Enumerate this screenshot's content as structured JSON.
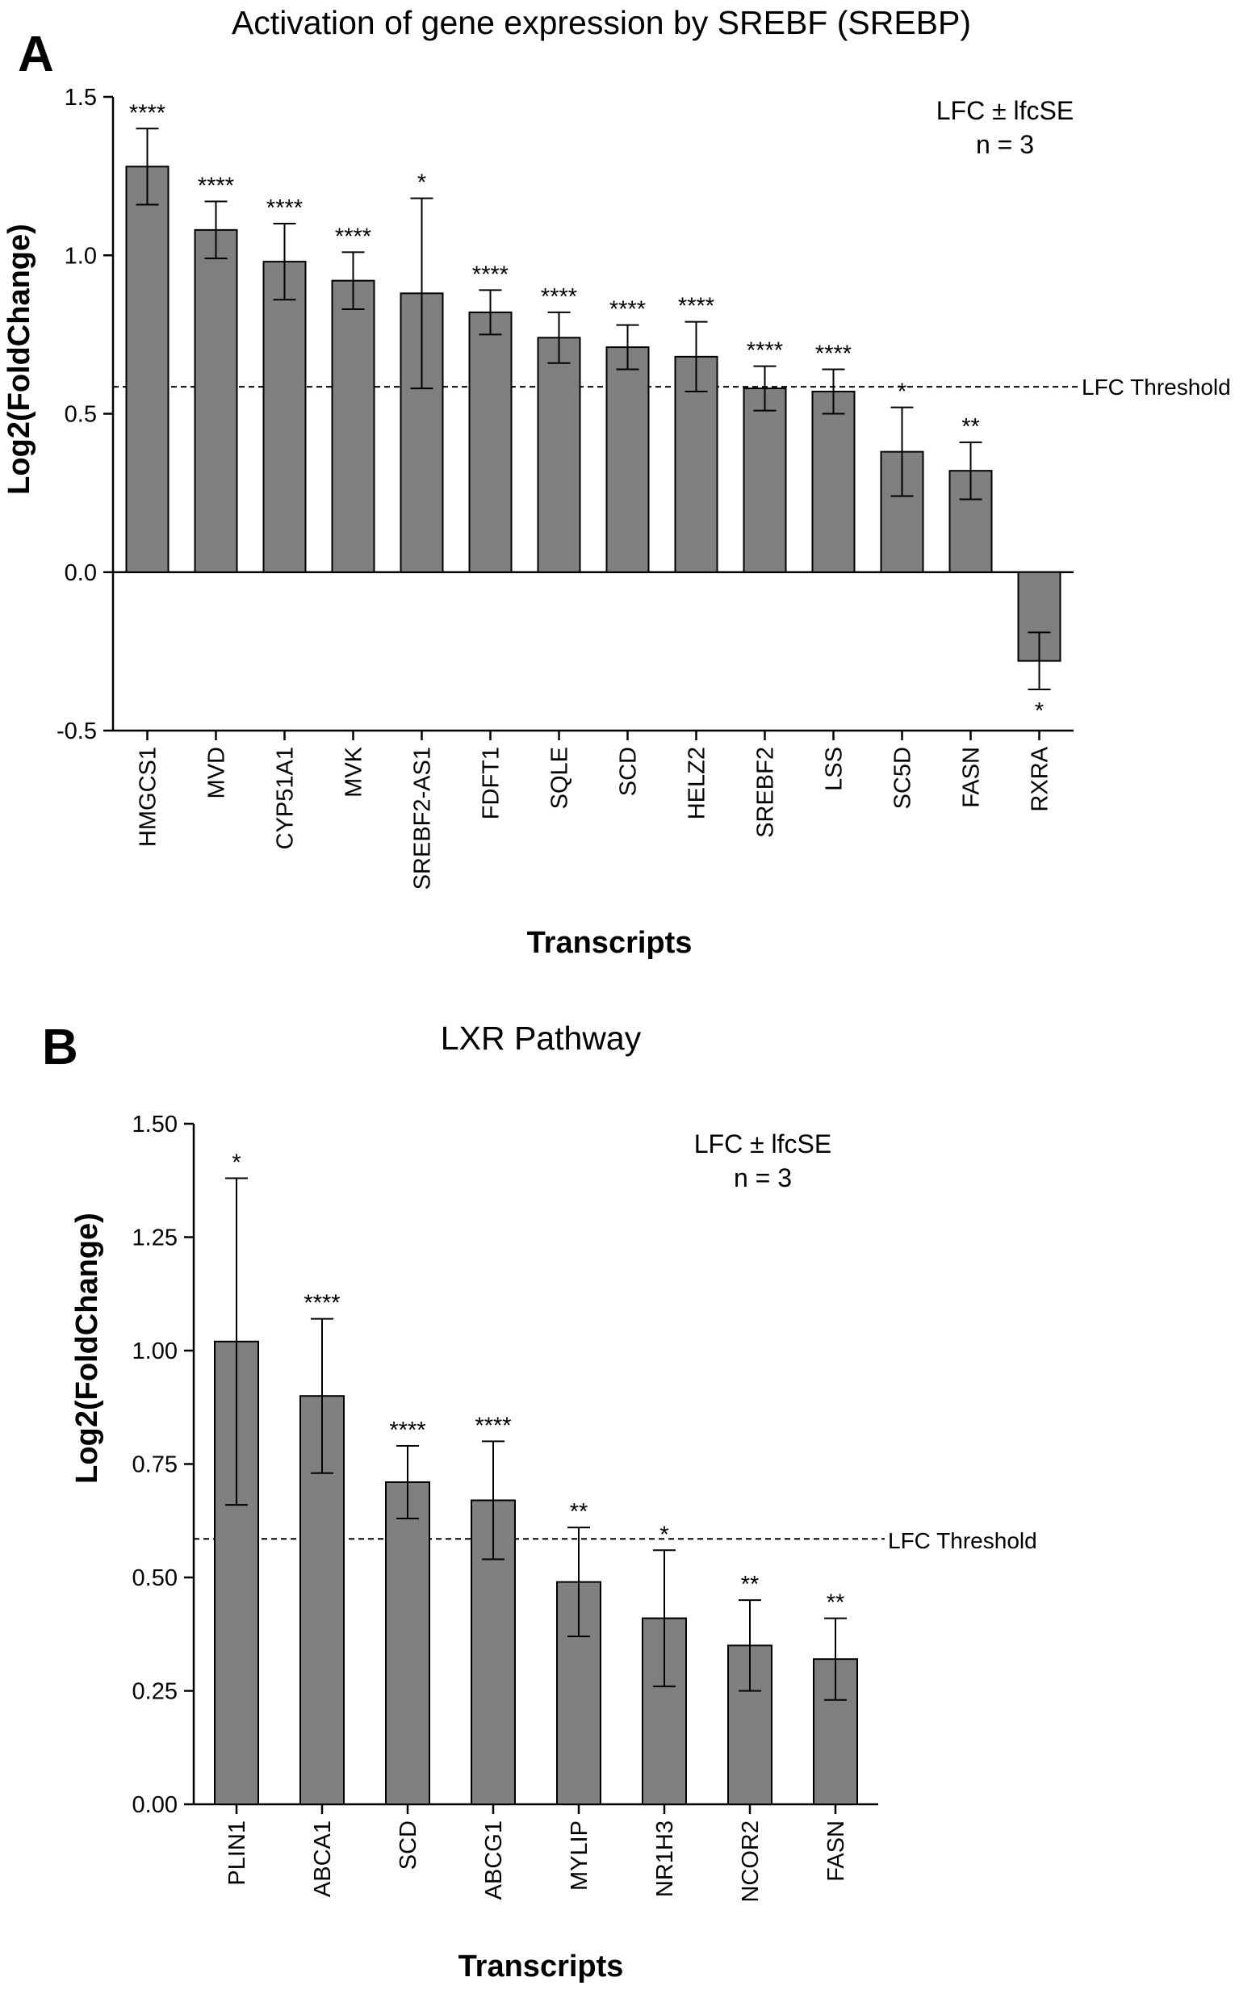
{
  "colors": {
    "bar": "#808080",
    "stroke": "#000000",
    "background": "#ffffff"
  },
  "chart_data": [
    {
      "panel": "A",
      "type": "bar",
      "title": "Activation of gene expression by SREBF (SREBP)",
      "xlabel": "Transcripts",
      "ylabel": "Log2(FoldChange)",
      "ylim": [
        -0.5,
        1.5
      ],
      "yticks": [
        "-0.5",
        "0.0",
        "0.5",
        "1.0",
        "1.5"
      ],
      "grid": false,
      "annotation": [
        "LFC ± lfcSE",
        "n = 3"
      ],
      "threshold": {
        "value": 0.585,
        "label": "LFC Threshold"
      },
      "categories": [
        "HMGCS1",
        "MVD",
        "CYP51A1",
        "MVK",
        "SREBF2-AS1",
        "FDFT1",
        "SQLE",
        "SCD",
        "HELZ2",
        "SREBF2",
        "LSS",
        "SC5D",
        "FASN",
        "RXRA"
      ],
      "values": [
        1.28,
        1.08,
        0.98,
        0.92,
        0.88,
        0.82,
        0.74,
        0.71,
        0.68,
        0.58,
        0.57,
        0.38,
        0.32,
        -0.28
      ],
      "errors": [
        0.12,
        0.09,
        0.12,
        0.09,
        0.3,
        0.07,
        0.08,
        0.07,
        0.11,
        0.07,
        0.07,
        0.14,
        0.09,
        0.09
      ],
      "significance": [
        "****",
        "****",
        "****",
        "****",
        "*",
        "****",
        "****",
        "****",
        "****",
        "****",
        "****",
        "*",
        "**",
        "*"
      ]
    },
    {
      "panel": "B",
      "type": "bar",
      "title": "LXR Pathway",
      "xlabel": "Transcripts",
      "ylabel": "Log2(FoldChange)",
      "ylim": [
        0,
        1.5
      ],
      "yticks": [
        "0.00",
        "0.25",
        "0.50",
        "0.75",
        "1.00",
        "1.25",
        "1.50"
      ],
      "grid": false,
      "annotation": [
        "LFC ± lfcSE",
        "n = 3"
      ],
      "threshold": {
        "value": 0.585,
        "label": "LFC Threshold"
      },
      "categories": [
        "PLIN1",
        "ABCA1",
        "SCD",
        "ABCG1",
        "MYLIP",
        "NR1H3",
        "NCOR2",
        "FASN"
      ],
      "values": [
        1.02,
        0.9,
        0.71,
        0.67,
        0.49,
        0.41,
        0.35,
        0.32
      ],
      "errors": [
        0.36,
        0.17,
        0.08,
        0.13,
        0.12,
        0.15,
        0.1,
        0.09
      ],
      "significance": [
        "*",
        "****",
        "****",
        "****",
        "**",
        "*",
        "**",
        "**"
      ]
    }
  ]
}
